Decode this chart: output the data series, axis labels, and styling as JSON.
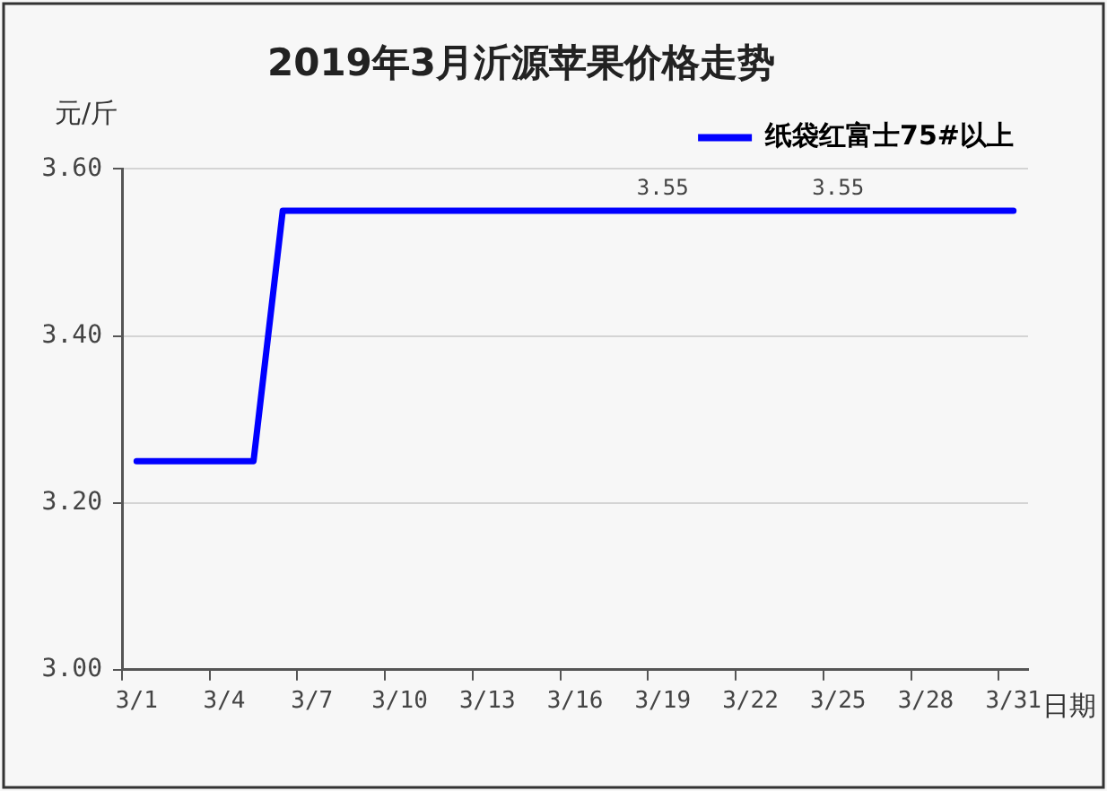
{
  "chart_data": {
    "type": "line",
    "title": "2019年3月沂源苹果价格走势",
    "xlabel": "日期",
    "ylabel": "元/斤",
    "categories": [
      "3/1",
      null,
      null,
      "3/4",
      null,
      null,
      "3/7",
      null,
      null,
      "3/10",
      null,
      null,
      "3/13",
      null,
      null,
      "3/16",
      null,
      null,
      "3/19",
      null,
      null,
      "3/22",
      null,
      null,
      "3/25",
      null,
      null,
      "3/28",
      null,
      null,
      "3/31"
    ],
    "series": [
      {
        "name": "纸袋红富士75#以上",
        "color": "#0000ff",
        "values": [
          3.25,
          3.25,
          3.25,
          3.25,
          3.25,
          3.55,
          3.55,
          3.55,
          3.55,
          3.55,
          3.55,
          3.55,
          3.55,
          3.55,
          3.55,
          3.55,
          3.55,
          3.55,
          3.55,
          3.55,
          3.55,
          3.55,
          3.55,
          3.55,
          3.55,
          3.55,
          3.55,
          3.55,
          3.55,
          3.55,
          3.55
        ],
        "value_labels": [
          null,
          null,
          null,
          null,
          null,
          null,
          null,
          null,
          null,
          null,
          null,
          null,
          null,
          null,
          null,
          null,
          null,
          null,
          "3.55",
          null,
          null,
          null,
          null,
          null,
          "3.55",
          null,
          null,
          null,
          null,
          null,
          null
        ]
      }
    ],
    "ylim": [
      3,
      3.6
    ],
    "yticks": [
      {
        "value": 3,
        "label": "3.00"
      },
      {
        "value": 3.2,
        "label": "3.20"
      },
      {
        "value": 3.4,
        "label": "3.40"
      },
      {
        "value": 3.6,
        "label": "3.60"
      }
    ],
    "grid": "y",
    "legend": "top right"
  }
}
